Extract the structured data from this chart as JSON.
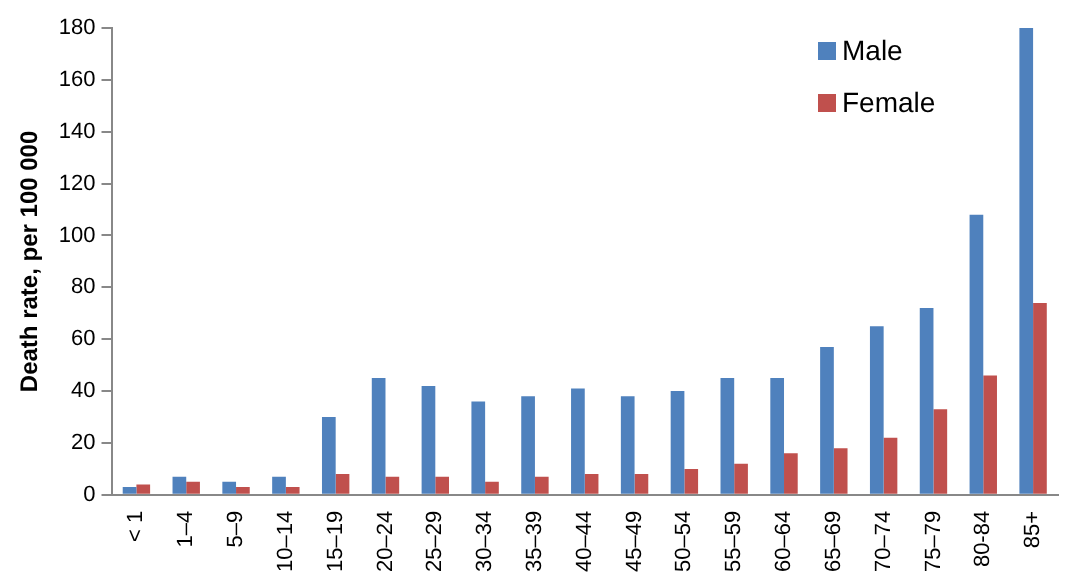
{
  "chart_data": {
    "type": "bar",
    "ylabel": "Death rate, per 100 000",
    "categories": [
      "< 1",
      "1–4",
      "5–9",
      "10–14",
      "15–19",
      "20–24",
      "25–29",
      "30–34",
      "35–39",
      "40–44",
      "45–49",
      "50–54",
      "55–59",
      "60–64",
      "65–69",
      "70–74",
      "75–79",
      "80-84",
      "85+"
    ],
    "series": [
      {
        "name": "Male",
        "color": "#4f81bd",
        "values": [
          3,
          7,
          5,
          7,
          30,
          45,
          42,
          36,
          38,
          41,
          38,
          40,
          45,
          45,
          57,
          65,
          72,
          108,
          180
        ]
      },
      {
        "name": "Female",
        "color": "#c0504d",
        "values": [
          4,
          5,
          3,
          3,
          8,
          7,
          7,
          5,
          7,
          8,
          8,
          10,
          12,
          16,
          18,
          22,
          33,
          46,
          74
        ]
      }
    ],
    "ylim": [
      0,
      180
    ],
    "yticks": [
      0,
      20,
      40,
      60,
      80,
      100,
      120,
      140,
      160,
      180
    ],
    "grid": false,
    "legend": "top right"
  }
}
